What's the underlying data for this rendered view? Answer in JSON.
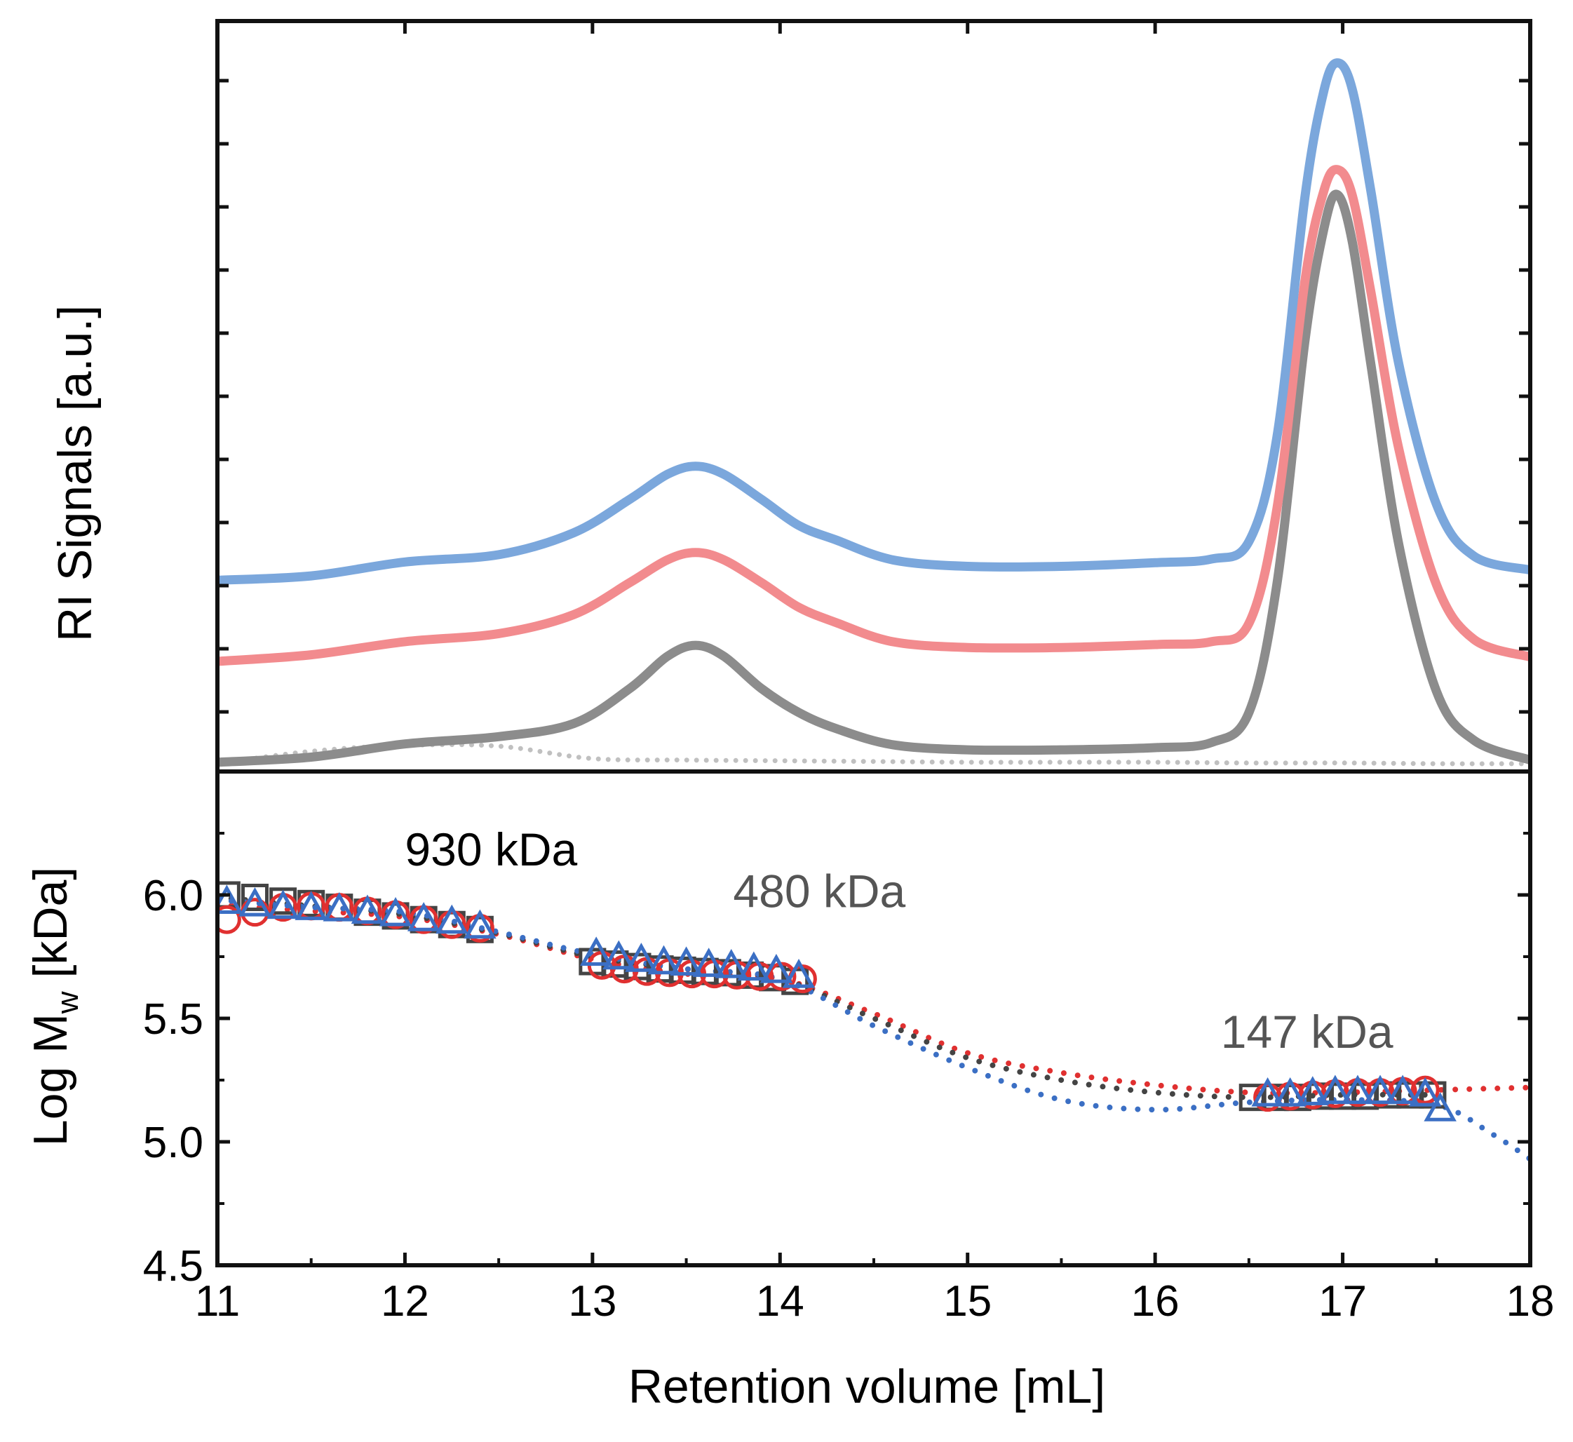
{
  "chart_data": [
    {
      "id": "ri-signals",
      "type": "line",
      "title": "",
      "xlabel": "",
      "ylabel": "RI Signals [a.u.]",
      "xlim": [
        11,
        18
      ],
      "ylim": [
        0,
        1
      ],
      "grid": false,
      "tick_labels_y": "none",
      "series": [
        {
          "color": "#7ba7dc",
          "style": "solid",
          "x": [
            11.0,
            11.5,
            12.0,
            12.5,
            12.9,
            13.2,
            13.4,
            13.55,
            13.7,
            13.9,
            14.1,
            14.3,
            14.6,
            15.0,
            15.5,
            16.0,
            16.3,
            16.5,
            16.65,
            16.8,
            16.9,
            16.97,
            17.05,
            17.15,
            17.3,
            17.5,
            17.7,
            18.0
          ],
          "y": [
            0.254,
            0.26,
            0.279,
            0.289,
            0.319,
            0.365,
            0.399,
            0.41,
            0.399,
            0.365,
            0.329,
            0.309,
            0.282,
            0.273,
            0.273,
            0.278,
            0.283,
            0.307,
            0.451,
            0.781,
            0.924,
            0.962,
            0.927,
            0.787,
            0.549,
            0.358,
            0.287,
            0.268
          ]
        },
        {
          "color": "#f28b8e",
          "style": "solid",
          "x": [
            11.0,
            11.5,
            12.0,
            12.5,
            12.9,
            13.2,
            13.4,
            13.55,
            13.7,
            13.9,
            14.1,
            14.3,
            14.6,
            15.0,
            15.5,
            16.0,
            16.3,
            16.5,
            16.65,
            16.8,
            16.9,
            16.97,
            17.05,
            17.15,
            17.3,
            17.5,
            17.7,
            18.0
          ],
          "y": [
            0.143,
            0.152,
            0.17,
            0.181,
            0.207,
            0.251,
            0.282,
            0.292,
            0.282,
            0.251,
            0.217,
            0.196,
            0.17,
            0.162,
            0.162,
            0.166,
            0.17,
            0.195,
            0.353,
            0.666,
            0.787,
            0.816,
            0.782,
            0.649,
            0.433,
            0.248,
            0.173,
            0.149
          ]
        },
        {
          "color": "#8c8c8c",
          "style": "solid",
          "x": [
            11.0,
            11.5,
            12.0,
            12.5,
            12.9,
            13.2,
            13.4,
            13.55,
            13.7,
            13.9,
            14.1,
            14.3,
            14.6,
            15.0,
            15.5,
            16.0,
            16.3,
            16.5,
            16.65,
            16.8,
            16.9,
            16.97,
            17.05,
            17.15,
            17.3,
            17.5,
            17.7,
            18.0
          ],
          "y": [
            0.005,
            0.012,
            0.03,
            0.04,
            0.058,
            0.106,
            0.15,
            0.165,
            0.15,
            0.106,
            0.073,
            0.051,
            0.029,
            0.022,
            0.022,
            0.025,
            0.032,
            0.073,
            0.25,
            0.584,
            0.735,
            0.782,
            0.719,
            0.55,
            0.302,
            0.102,
            0.035,
            0.008
          ]
        },
        {
          "color": "#c0c0c0",
          "style": "dotted",
          "x": [
            11.0,
            11.5,
            12.0,
            12.5,
            13.0,
            13.5,
            14.0,
            14.5,
            15.0,
            15.5,
            16.0,
            16.5,
            17.0,
            17.5,
            18.0
          ],
          "y": [
            0.003,
            0.02,
            0.028,
            0.027,
            0.01,
            0.008,
            0.007,
            0.006,
            0.005,
            0.005,
            0.005,
            0.004,
            0.004,
            0.003,
            0.003
          ]
        }
      ]
    },
    {
      "id": "log-mw",
      "type": "scatter",
      "title": "",
      "xlabel": "Retention volume [mL]",
      "ylabel_main": "Log M",
      "ylabel_sub": "w",
      "ylabel_unit": " [kDa]",
      "xlim": [
        11,
        18
      ],
      "ylim": [
        4.5,
        6.5
      ],
      "xticks": [
        "11",
        "12",
        "13",
        "14",
        "15",
        "16",
        "17",
        "18"
      ],
      "yticks": [
        "4.5",
        "5.0",
        "5.5",
        "6.0"
      ],
      "grid": false,
      "annotations": [
        {
          "text": "930 kDa",
          "x": 12.0,
          "y": 6.12,
          "color": "#000000"
        },
        {
          "text": "480 kDa",
          "x": 13.75,
          "y": 5.95,
          "color": "#555555"
        },
        {
          "text": "147 kDa",
          "x": 16.35,
          "y": 5.38,
          "color": "#555555"
        }
      ],
      "fit_lines": [
        {
          "color": "#e03030",
          "x": [
            11.0,
            11.5,
            12.0,
            12.5,
            13.0,
            13.5,
            14.0,
            14.5,
            15.0,
            15.5,
            16.0,
            16.5,
            17.0,
            17.5,
            18.0
          ],
          "y": [
            5.96,
            5.935,
            5.91,
            5.84,
            5.74,
            5.68,
            5.66,
            5.52,
            5.36,
            5.28,
            5.23,
            5.2,
            5.2,
            5.21,
            5.22
          ]
        },
        {
          "color": "#444444",
          "x": [
            11.0,
            11.5,
            12.0,
            12.5,
            13.0,
            13.5,
            14.0,
            14.5,
            15.0,
            15.5,
            16.0,
            16.5,
            17.0,
            17.5
          ],
          "y": [
            5.99,
            5.955,
            5.92,
            5.845,
            5.75,
            5.7,
            5.66,
            5.5,
            5.34,
            5.25,
            5.2,
            5.18,
            5.19,
            5.19
          ]
        },
        {
          "color": "#3b6fc4",
          "x": [
            11.0,
            11.5,
            12.0,
            12.5,
            13.0,
            13.5,
            14.0,
            14.5,
            15.0,
            15.5,
            16.0,
            16.5,
            17.0,
            17.5,
            17.8,
            18.0
          ],
          "y": [
            5.98,
            5.95,
            5.93,
            5.85,
            5.76,
            5.7,
            5.66,
            5.47,
            5.3,
            5.17,
            5.13,
            5.16,
            5.17,
            5.15,
            5.03,
            4.93
          ]
        }
      ],
      "series": [
        {
          "marker": "square",
          "color": "#444444",
          "x": [
            11.05,
            11.2,
            11.35,
            11.5,
            11.65,
            11.8,
            11.95,
            12.1,
            12.25,
            12.4,
            13.0,
            13.12,
            13.24,
            13.36,
            13.48,
            13.6,
            13.72,
            13.84,
            13.96,
            14.08,
            16.52,
            16.64,
            16.76,
            16.88,
            17.0,
            17.12,
            17.24,
            17.36,
            17.48
          ],
          "y": [
            6.0,
            5.99,
            5.975,
            5.965,
            5.95,
            5.93,
            5.915,
            5.9,
            5.88,
            5.86,
            5.73,
            5.72,
            5.71,
            5.7,
            5.695,
            5.69,
            5.685,
            5.675,
            5.665,
            5.65,
            5.18,
            5.18,
            5.18,
            5.185,
            5.185,
            5.185,
            5.19,
            5.19,
            5.19
          ]
        },
        {
          "marker": "circle",
          "color": "#e03030",
          "x": [
            11.05,
            11.2,
            11.35,
            11.5,
            11.65,
            11.8,
            11.95,
            12.1,
            12.25,
            12.4,
            13.05,
            13.17,
            13.29,
            13.41,
            13.53,
            13.65,
            13.77,
            13.89,
            14.01,
            14.12,
            16.6,
            16.72,
            16.84,
            16.96,
            17.08,
            17.2,
            17.32,
            17.44
          ],
          "y": [
            5.9,
            5.93,
            5.95,
            5.955,
            5.95,
            5.935,
            5.92,
            5.9,
            5.88,
            5.865,
            5.715,
            5.7,
            5.69,
            5.685,
            5.68,
            5.68,
            5.675,
            5.67,
            5.67,
            5.66,
            5.18,
            5.185,
            5.19,
            5.195,
            5.2,
            5.2,
            5.205,
            5.21
          ]
        },
        {
          "marker": "triangle",
          "color": "#3b6fc4",
          "x": [
            11.05,
            11.2,
            11.35,
            11.5,
            11.65,
            11.8,
            11.95,
            12.1,
            12.25,
            12.4,
            13.02,
            13.14,
            13.26,
            13.38,
            13.5,
            13.62,
            13.74,
            13.86,
            13.98,
            14.1,
            16.6,
            16.72,
            16.84,
            16.96,
            17.08,
            17.2,
            17.32,
            17.44,
            17.52
          ],
          "y": [
            5.97,
            5.96,
            5.95,
            5.945,
            5.94,
            5.93,
            5.92,
            5.9,
            5.89,
            5.87,
            5.76,
            5.745,
            5.735,
            5.725,
            5.72,
            5.715,
            5.71,
            5.7,
            5.69,
            5.67,
            5.19,
            5.19,
            5.195,
            5.2,
            5.2,
            5.2,
            5.2,
            5.19,
            5.13
          ]
        }
      ]
    }
  ]
}
